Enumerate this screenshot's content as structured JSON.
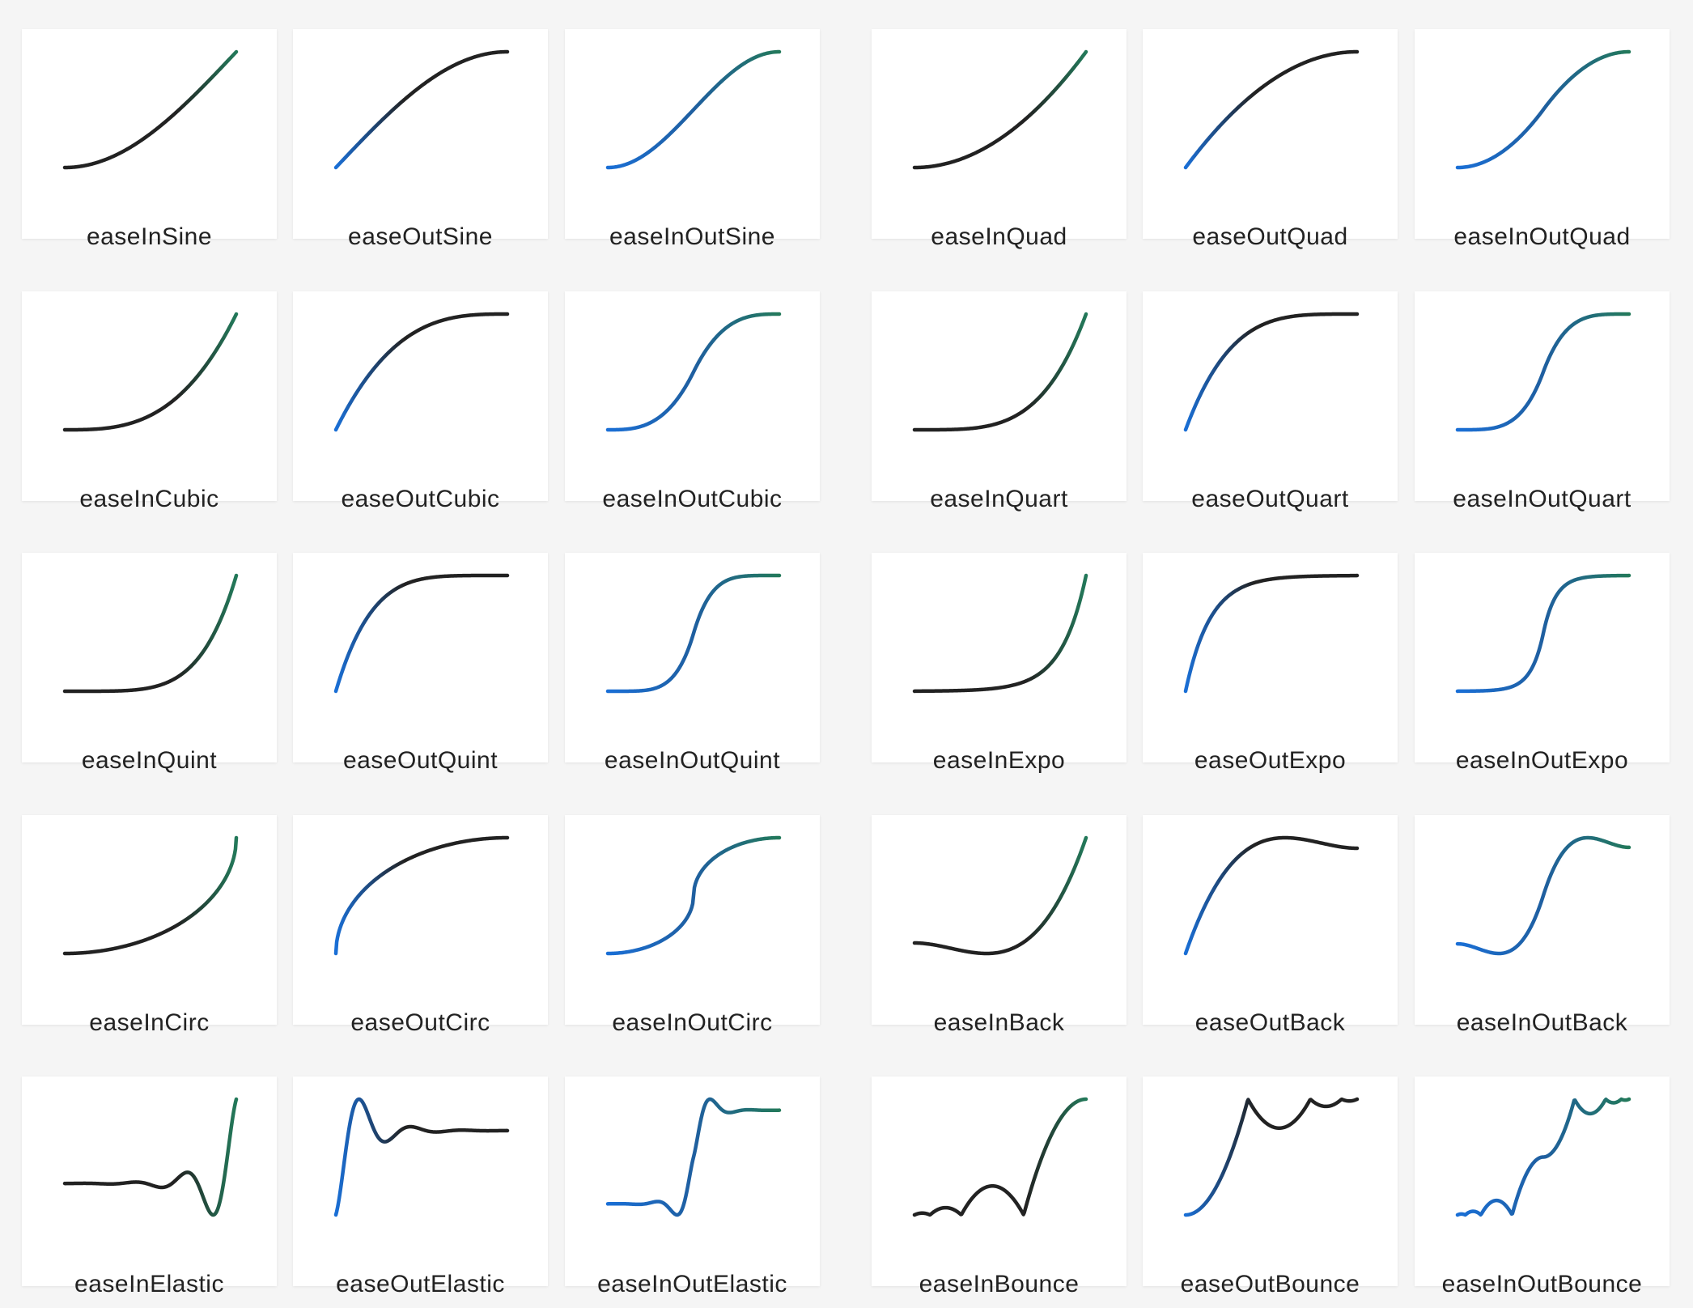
{
  "cards": [
    "easeInSine",
    "easeOutSine",
    "easeInOutSine",
    "easeInQuad",
    "easeOutQuad",
    "easeInOutQuad",
    "easeInCubic",
    "easeOutCubic",
    "easeInOutCubic",
    "easeInQuart",
    "easeOutQuart",
    "easeInOutQuart",
    "easeInQuint",
    "easeOutQuint",
    "easeInOutQuint",
    "easeInExpo",
    "easeOutExpo",
    "easeInOutExpo",
    "easeInCirc",
    "easeOutCirc",
    "easeInOutCirc",
    "easeInBack",
    "easeOutBack",
    "easeInOutBack",
    "easeInElastic",
    "easeOutElastic",
    "easeInOutElastic",
    "easeInBounce",
    "easeOutBounce",
    "easeInOutBounce"
  ]
}
